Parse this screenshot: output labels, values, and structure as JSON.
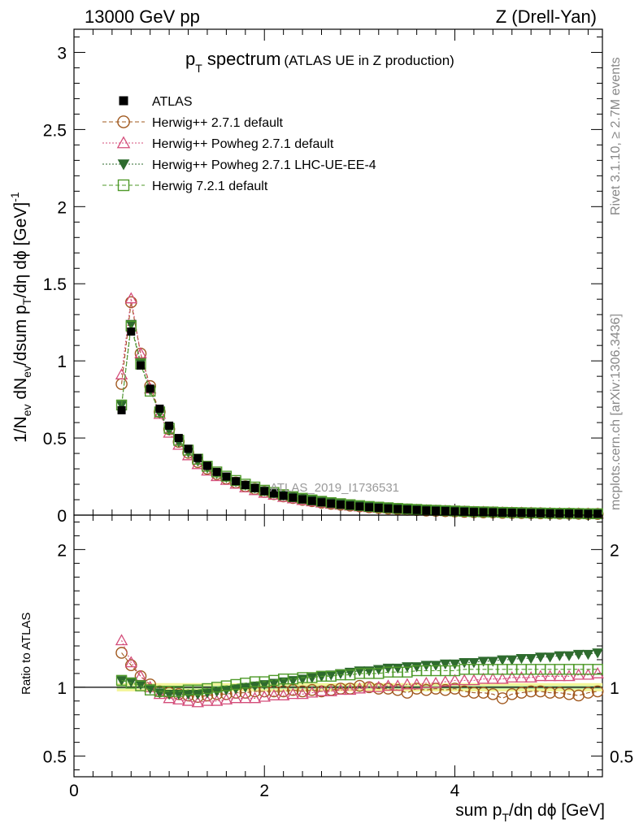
{
  "header": {
    "energy": "13000 GeV pp",
    "process": "Z (Drell-Yan)",
    "rivet": "Rivet 3.1.10, ≥ 2.7M events",
    "mcplots": "mcplots.cern.ch [arXiv:1306.3436]"
  },
  "plot": {
    "title_main": "p",
    "title_sub": "T",
    "title_word": " spectrum",
    "title_note": "(ATLAS UE in Z production)",
    "watermark": "ATLAS_2019_I1736531",
    "ratio_ylabel": "Ratio to ATLAS"
  },
  "chart_data": {
    "type": "scatter",
    "x": [
      0.5,
      0.6,
      0.7,
      0.8,
      0.9,
      1.0,
      1.1,
      1.2,
      1.3,
      1.4,
      1.5,
      1.6,
      1.7,
      1.8,
      1.9,
      2.0,
      2.1,
      2.2,
      2.3,
      2.4,
      2.5,
      2.6,
      2.7,
      2.8,
      2.9,
      3.0,
      3.1,
      3.2,
      3.3,
      3.4,
      3.5,
      3.6,
      3.7,
      3.8,
      3.9,
      4.0,
      4.1,
      4.2,
      4.3,
      4.4,
      4.5,
      4.6,
      4.7,
      4.8,
      4.9,
      5.0,
      5.1,
      5.2,
      5.3,
      5.4,
      5.5
    ],
    "xlim": [
      0,
      5.55
    ],
    "ylim_main": [
      0,
      3.15
    ],
    "ylim_ratio": [
      0.35,
      2.25
    ],
    "xticks": [
      0,
      2,
      4
    ],
    "yticks_main": [
      "0",
      "0.5",
      "1",
      "1.5",
      "2",
      "2.5",
      "3"
    ],
    "yticks_ratio": [
      "0.5",
      "1",
      "2"
    ],
    "xlabel": "sum p_T/dη dϕ [GeV]",
    "ylabel": "1/N_ev dN_ev/dsum p_T/dη dϕ [GeV]^-1",
    "ytick_values_main": [
      0,
      0.5,
      1,
      1.5,
      2,
      2.5,
      3
    ],
    "ytick_values_ratio": [
      0.5,
      1,
      2
    ],
    "legend_position": "top-left",
    "data": {
      "name": "ATLAS",
      "color": "#000000",
      "values": [
        0.68,
        1.19,
        0.97,
        0.82,
        0.69,
        0.58,
        0.5,
        0.43,
        0.37,
        0.32,
        0.28,
        0.25,
        0.22,
        0.195,
        0.175,
        0.155,
        0.14,
        0.125,
        0.113,
        0.102,
        0.092,
        0.083,
        0.075,
        0.068,
        0.062,
        0.056,
        0.051,
        0.047,
        0.043,
        0.039,
        0.036,
        0.033,
        0.03,
        0.028,
        0.026,
        0.024,
        0.022,
        0.02,
        0.019,
        0.018,
        0.016,
        0.015,
        0.014,
        0.013,
        0.012,
        0.011,
        0.01,
        0.01,
        0.009,
        0.008,
        0.008
      ]
    },
    "series": [
      {
        "name": "Herwig++ 2.7.1 default",
        "color": "#a0581e",
        "marker": "circle-open",
        "line": "dashed",
        "ratio": [
          1.25,
          1.16,
          1.08,
          1.02,
          0.97,
          0.96,
          0.95,
          0.94,
          0.93,
          0.94,
          0.95,
          0.95,
          0.96,
          0.96,
          0.97,
          0.97,
          0.97,
          0.97,
          0.98,
          0.97,
          0.98,
          0.97,
          0.98,
          0.99,
          0.99,
          1.01,
          1.0,
          0.99,
          0.99,
          0.98,
          0.96,
          0.99,
          0.98,
          0.99,
          0.98,
          0.99,
          0.97,
          0.96,
          0.96,
          0.95,
          0.92,
          0.95,
          0.96,
          0.97,
          0.97,
          0.96,
          0.96,
          0.95,
          0.94,
          0.96,
          0.97
        ]
      },
      {
        "name": "Herwig++ Powheg 2.7.1 default",
        "color": "#d44d7a",
        "marker": "triangle-open",
        "line": "dotted",
        "ratio": [
          1.34,
          1.18,
          1.08,
          1.0,
          0.95,
          0.92,
          0.91,
          0.9,
          0.89,
          0.9,
          0.9,
          0.91,
          0.92,
          0.92,
          0.92,
          0.93,
          0.94,
          0.94,
          0.95,
          0.95,
          0.96,
          0.97,
          0.97,
          0.98,
          0.98,
          0.99,
          1.0,
          1.0,
          1.01,
          1.01,
          1.02,
          1.02,
          1.03,
          1.03,
          1.04,
          1.05,
          1.05,
          1.05,
          1.06,
          1.06,
          1.06,
          1.07,
          1.07,
          1.07,
          1.08,
          1.08,
          1.08,
          1.08,
          1.09,
          1.09,
          1.1
        ]
      },
      {
        "name": "Herwig++ Powheg 2.7.1 LHC-UE-EE-4",
        "color": "#2e6b2e",
        "marker": "triangle-down-filled",
        "line": "dotted",
        "ratio": [
          1.05,
          1.04,
          1.02,
          0.99,
          0.96,
          0.95,
          0.95,
          0.95,
          0.95,
          0.96,
          0.97,
          0.98,
          0.99,
          1.0,
          1.01,
          1.02,
          1.03,
          1.04,
          1.05,
          1.06,
          1.07,
          1.08,
          1.09,
          1.1,
          1.11,
          1.12,
          1.12,
          1.13,
          1.14,
          1.14,
          1.15,
          1.15,
          1.16,
          1.16,
          1.17,
          1.17,
          1.18,
          1.18,
          1.19,
          1.19,
          1.2,
          1.2,
          1.21,
          1.21,
          1.22,
          1.22,
          1.23,
          1.23,
          1.24,
          1.24,
          1.25
        ]
      },
      {
        "name": "Herwig 7.2.1 default",
        "color": "#4f9a2a",
        "marker": "square-open",
        "line": "dashed",
        "ratio": [
          1.05,
          1.03,
          1.01,
          0.98,
          0.97,
          0.97,
          0.97,
          0.98,
          0.98,
          0.99,
          1.0,
          1.01,
          1.02,
          1.03,
          1.04,
          1.04,
          1.05,
          1.06,
          1.06,
          1.07,
          1.07,
          1.08,
          1.08,
          1.09,
          1.09,
          1.1,
          1.1,
          1.1,
          1.11,
          1.11,
          1.11,
          1.12,
          1.12,
          1.12,
          1.12,
          1.12,
          1.13,
          1.13,
          1.13,
          1.13,
          1.13,
          1.13,
          1.13,
          1.13,
          1.13,
          1.13,
          1.13,
          1.13,
          1.13,
          1.13,
          1.13
        ]
      }
    ]
  }
}
